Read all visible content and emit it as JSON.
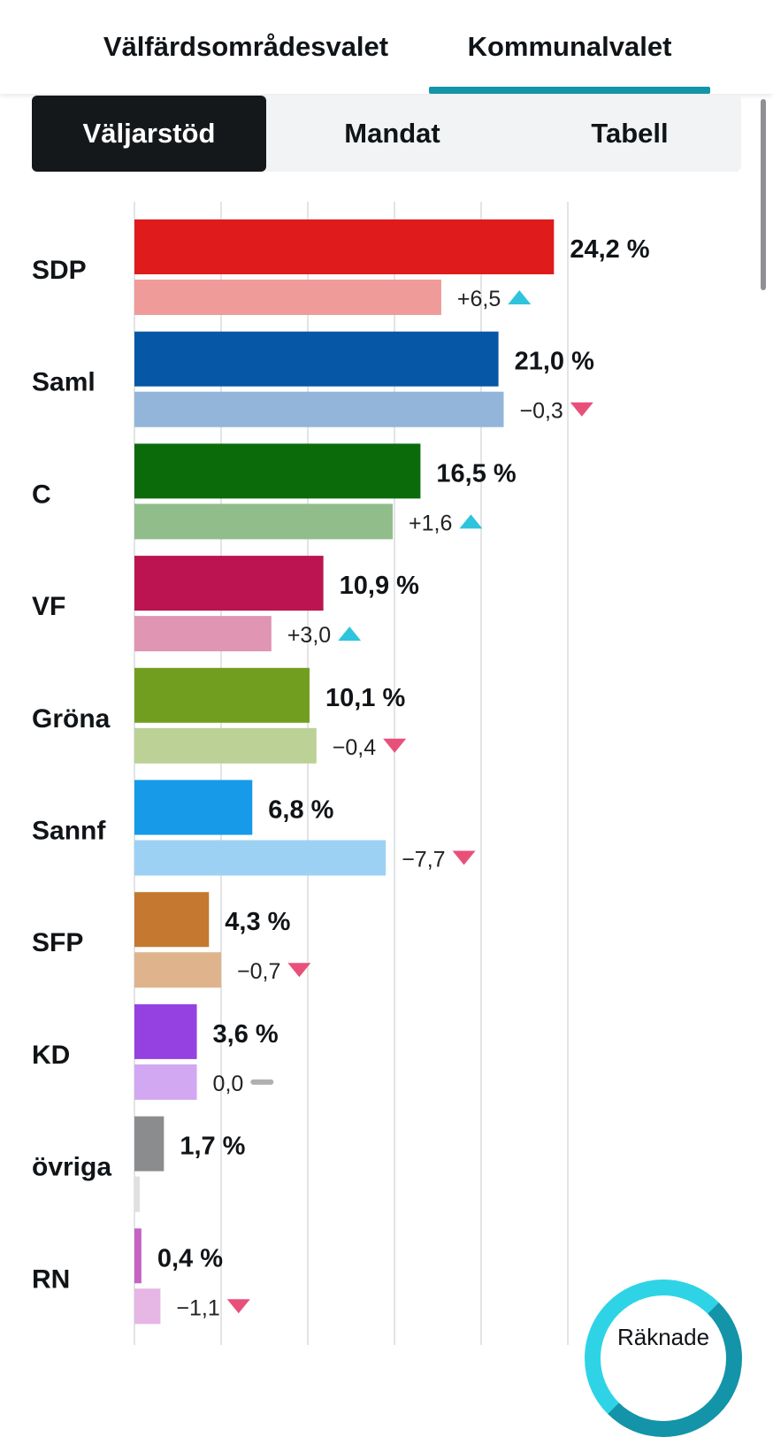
{
  "tabs": {
    "items": [
      {
        "label": "Välfärdsområdesvalet",
        "active": false
      },
      {
        "label": "Kommunalvalet",
        "active": true
      }
    ]
  },
  "view_toggle": {
    "items": [
      {
        "label": "Väljarstöd",
        "active": true
      },
      {
        "label": "Mandat",
        "active": false
      },
      {
        "label": "Tabell",
        "active": false
      }
    ]
  },
  "counted_label": "Räknade",
  "colors": {
    "up_arrow": "#2ec4dd",
    "down_arrow": "#e8507a",
    "neutral": "#b0b0b0",
    "accent": "#1394a8"
  },
  "chart_data": {
    "type": "bar",
    "orientation": "horizontal",
    "categories": [
      "SDP",
      "Saml",
      "C",
      "VF",
      "Gröna",
      "Sannf",
      "SFP",
      "KD",
      "övriga",
      "RN"
    ],
    "series": [
      {
        "values": [
          24.2,
          21.0,
          16.5,
          10.9,
          10.1,
          6.8,
          4.3,
          3.6,
          1.7,
          0.4
        ],
        "labels": [
          "24,2 %",
          "21,0 %",
          "16,5 %",
          "10,9 %",
          "10,1 %",
          "6,8 %",
          "4,3 %",
          "3,6 %",
          "1,7 %",
          "0,4 %"
        ]
      },
      {
        "values": [
          17.7,
          21.3,
          14.9,
          7.9,
          10.5,
          14.5,
          5.0,
          3.6,
          0.3,
          1.5
        ]
      }
    ],
    "changes": [
      6.5,
      -0.3,
      1.6,
      3.0,
      -0.4,
      -7.7,
      -0.7,
      0.0,
      null,
      -1.1
    ],
    "change_labels": [
      "+6,5",
      "−0,3",
      "+1,6",
      "+3,0",
      "−0,4",
      "−7,7",
      "−0,7",
      "0,0",
      "",
      "−1,1"
    ],
    "colors": [
      "#e01b1b",
      "#0657a6",
      "#0b6b0a",
      "#bc1450",
      "#729e20",
      "#179ae8",
      "#c5782f",
      "#9541e2",
      "#8a8c8d",
      "#c562c4"
    ],
    "prev_colors": [
      "#ef9b99",
      "#92b5d9",
      "#90bd8a",
      "#e095b3",
      "#bcd196",
      "#9dd1f4",
      "#dfb48c",
      "#d2a8f2",
      "#e0e0e0",
      "#e6b6e4"
    ],
    "xlim": [
      0,
      25
    ],
    "grid": true
  }
}
